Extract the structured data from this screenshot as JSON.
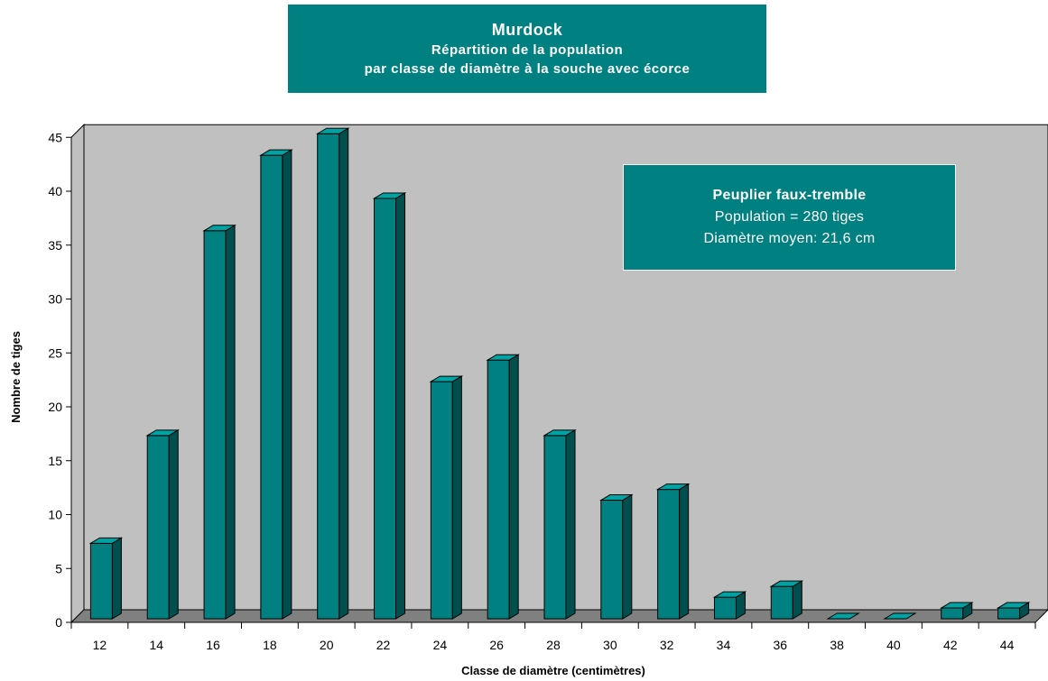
{
  "title": {
    "line1": "Murdock",
    "line2": "Répartition de la population",
    "line3": "par classe de diamètre à la souche avec écorce"
  },
  "annotation": {
    "species": "Peuplier faux-tremble",
    "population": "Population = 280 tiges",
    "mean_diameter": "Diamètre moyen: 21,6 cm"
  },
  "colors": {
    "bar_front": "#008080",
    "bar_side": "#004f4f",
    "bar_top": "#00a3a3",
    "wall": "#c0c0c0",
    "floor": "#808080"
  },
  "chart_data": {
    "type": "bar",
    "xlabel": "Classe de diamètre (centimètres)",
    "ylabel": "Nombre de tiges",
    "categories": [
      "12",
      "14",
      "16",
      "18",
      "20",
      "22",
      "24",
      "26",
      "28",
      "30",
      "32",
      "34",
      "36",
      "38",
      "40",
      "42",
      "44"
    ],
    "values": [
      7,
      17,
      36,
      43,
      45,
      39,
      22,
      24,
      17,
      11,
      12,
      2,
      3,
      0,
      0,
      1,
      1
    ],
    "ylim": [
      0,
      45
    ],
    "yticks": [
      "0",
      "5",
      "10",
      "15",
      "20",
      "25",
      "30",
      "35",
      "40",
      "45"
    ],
    "grid": false,
    "style": "3d"
  }
}
